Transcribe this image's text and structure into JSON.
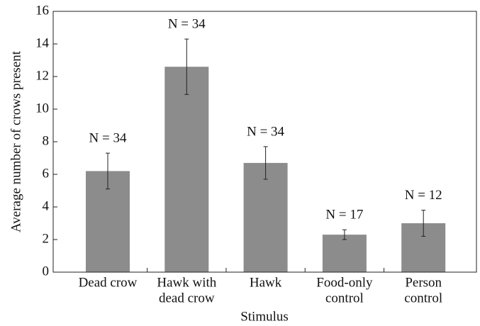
{
  "chart_data": {
    "type": "bar",
    "xlabel": "Stimulus",
    "ylabel": "Average number of crows present",
    "categories": [
      [
        "Dead crow"
      ],
      [
        "Hawk with",
        "dead crow"
      ],
      [
        "Hawk"
      ],
      [
        "Food-only",
        "control"
      ],
      [
        "Person",
        "control"
      ]
    ],
    "values": [
      6.2,
      12.6,
      6.7,
      2.3,
      3.0
    ],
    "errors": [
      1.1,
      1.7,
      1.0,
      0.3,
      0.8
    ],
    "annotations": [
      "N = 34",
      "N = 34",
      "N = 34",
      "N = 17",
      "N = 12"
    ],
    "color": "#8c8c8c",
    "ylim": [
      0,
      16
    ],
    "yticks": [
      0,
      2,
      4,
      6,
      8,
      10,
      12,
      14,
      16
    ]
  }
}
